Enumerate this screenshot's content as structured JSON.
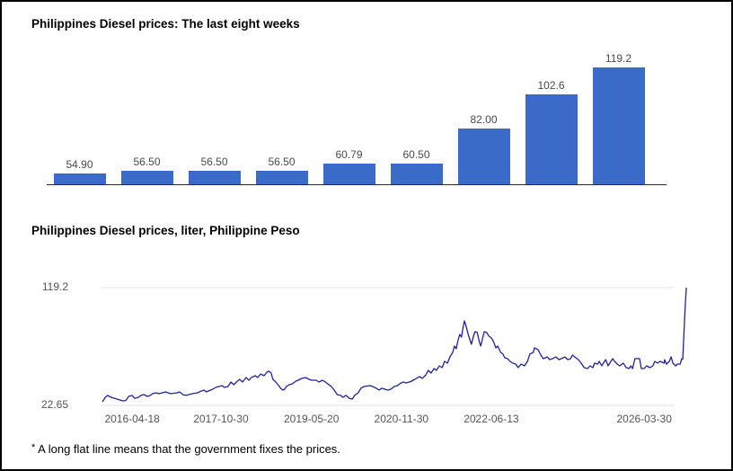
{
  "page": {
    "footnote_star": "*",
    "footnote_text": " A long flat line means that the government fixes the prices."
  },
  "chart_data": [
    {
      "type": "bar",
      "title": "Philippines Diesel prices: The last eight weeks",
      "categories": [
        "",
        "",
        "",
        "",
        "",
        "",
        "",
        "",
        ""
      ],
      "values": [
        54.9,
        56.5,
        56.5,
        56.5,
        60.79,
        60.5,
        82.0,
        102.6,
        119.2
      ],
      "data_labels": [
        "54.90",
        "56.50",
        "56.50",
        "56.50",
        "60.79",
        "60.50",
        "82.00",
        "102.6",
        "119.2"
      ],
      "bar_color": "#3a6bc8",
      "label_color": "#4a4a4a",
      "axis_color": "#2b2b2b",
      "ylim": [
        48.2,
        119.2
      ],
      "grid": false,
      "legend": "none"
    },
    {
      "type": "line",
      "title": "Philippines Diesel prices, liter, Philippine Peso",
      "ylabel": "",
      "xlabel": "",
      "ylim": [
        22.65,
        119.2
      ],
      "y_ticks": [
        {
          "label": "119.2",
          "value": 119.2
        },
        {
          "label": "22.65",
          "value": 22.65
        }
      ],
      "x_ticks": [
        {
          "label": "2016-04-18",
          "pos_pct": 5.1
        },
        {
          "label": "2017-10-30",
          "pos_pct": 20.3
        },
        {
          "label": "2019-05-20",
          "pos_pct": 35.8
        },
        {
          "label": "2020-11-30",
          "pos_pct": 51.2
        },
        {
          "label": "2022-06-13",
          "pos_pct": 66.6
        },
        {
          "label": "2026-03-30",
          "pos_pct": 92.8
        }
      ],
      "line_color": "#22229e",
      "grid_color": "#e0e0e0",
      "tick_color": "#555555",
      "legend": "none",
      "x_axis_note": "position percent along series (index-based axis)",
      "points": [
        [
          0,
          25.6
        ],
        [
          0.5,
          29.3
        ],
        [
          0.9,
          30.8
        ],
        [
          1.5,
          29.3
        ],
        [
          2.5,
          27.8
        ],
        [
          3.5,
          26.3
        ],
        [
          4,
          26.6
        ],
        [
          4.5,
          30
        ],
        [
          5.1,
          30.8
        ],
        [
          5.5,
          28.5
        ],
        [
          6.2,
          29.3
        ],
        [
          6.6,
          30.8
        ],
        [
          7.1,
          31.5
        ],
        [
          7.7,
          30
        ],
        [
          8.2,
          30.8
        ],
        [
          8.6,
          32.2
        ],
        [
          9.2,
          33
        ],
        [
          9.7,
          32.2
        ],
        [
          10.8,
          33.7
        ],
        [
          11.7,
          32.2
        ],
        [
          12.8,
          33
        ],
        [
          13.2,
          33.7
        ],
        [
          13.8,
          31.5
        ],
        [
          14.3,
          30.8
        ],
        [
          15.4,
          32.2
        ],
        [
          16.3,
          33
        ],
        [
          16.9,
          34.4
        ],
        [
          17.4,
          35.2
        ],
        [
          17.8,
          33.7
        ],
        [
          18.9,
          35.9
        ],
        [
          19.4,
          37.4
        ],
        [
          20.5,
          38.9
        ],
        [
          20.9,
          37.4
        ],
        [
          21.5,
          38.1
        ],
        [
          22,
          41.8
        ],
        [
          22.5,
          39.6
        ],
        [
          23.1,
          42.5
        ],
        [
          23.5,
          44
        ],
        [
          24,
          41.8
        ],
        [
          24.6,
          45.5
        ],
        [
          25.1,
          43.3
        ],
        [
          25.5,
          45.5
        ],
        [
          26.2,
          47
        ],
        [
          26.6,
          45.5
        ],
        [
          27.1,
          48.4
        ],
        [
          27.7,
          47
        ],
        [
          28.2,
          49.9
        ],
        [
          28.5,
          50.7
        ],
        [
          28.9,
          49.2
        ],
        [
          29.2,
          44
        ],
        [
          29.7,
          41.8
        ],
        [
          30.2,
          38.9
        ],
        [
          30.5,
          36.7
        ],
        [
          30.9,
          35.2
        ],
        [
          31.2,
          35.9
        ],
        [
          31.5,
          38.1
        ],
        [
          32,
          39.6
        ],
        [
          32.5,
          40.3
        ],
        [
          33.1,
          42.5
        ],
        [
          33.5,
          43.3
        ],
        [
          34.2,
          44.8
        ],
        [
          34.8,
          45.5
        ],
        [
          35.4,
          44
        ],
        [
          35.8,
          43.3
        ],
        [
          36.6,
          43.3
        ],
        [
          37.1,
          41.8
        ],
        [
          37.7,
          43.3
        ],
        [
          38.2,
          41.8
        ],
        [
          38.6,
          40.3
        ],
        [
          39.2,
          38.1
        ],
        [
          39.7,
          35.2
        ],
        [
          40.2,
          31.5
        ],
        [
          40.8,
          30.8
        ],
        [
          41.2,
          29.3
        ],
        [
          41.7,
          30.8
        ],
        [
          42.3,
          28.5
        ],
        [
          42.8,
          27.8
        ],
        [
          43.2,
          30.8
        ],
        [
          43.8,
          33
        ],
        [
          44.3,
          36.7
        ],
        [
          44.8,
          38.1
        ],
        [
          45.8,
          38.9
        ],
        [
          46.3,
          38.1
        ],
        [
          46.9,
          36.7
        ],
        [
          47.4,
          35.2
        ],
        [
          47.8,
          36.7
        ],
        [
          48.9,
          35.2
        ],
        [
          49.4,
          35.9
        ],
        [
          50,
          38.1
        ],
        [
          50.5,
          38.9
        ],
        [
          50.9,
          40.3
        ],
        [
          51.5,
          41.8
        ],
        [
          52,
          41.1
        ],
        [
          52.8,
          42.2
        ],
        [
          53.5,
          44
        ],
        [
          54.3,
          46.2
        ],
        [
          54.8,
          44.8
        ],
        [
          55.4,
          47.7
        ],
        [
          55.8,
          51.4
        ],
        [
          56.3,
          49.2
        ],
        [
          56.8,
          52.9
        ],
        [
          57.2,
          51.4
        ],
        [
          57.7,
          55.1
        ],
        [
          58.2,
          53.6
        ],
        [
          58.6,
          58.8
        ],
        [
          59.1,
          57.3
        ],
        [
          59.5,
          62.4
        ],
        [
          60,
          66.1
        ],
        [
          60.3,
          71.3
        ],
        [
          60.6,
          69.1
        ],
        [
          60.9,
          75.7
        ],
        [
          61.2,
          80.9
        ],
        [
          61.5,
          78.7
        ],
        [
          61.8,
          87.5
        ],
        [
          62,
          91.9
        ],
        [
          62.3,
          87.5
        ],
        [
          62.6,
          81.7
        ],
        [
          62.9,
          77.2
        ],
        [
          63.2,
          72.8
        ],
        [
          63.5,
          78.7
        ],
        [
          63.8,
          83.1
        ],
        [
          64.2,
          82.4
        ],
        [
          64.5,
          75.7
        ],
        [
          64.8,
          71.3
        ],
        [
          65.1,
          77.2
        ],
        [
          65.4,
          83.1
        ],
        [
          65.8,
          82.4
        ],
        [
          66.2,
          79.4
        ],
        [
          66.6,
          78
        ],
        [
          66.9,
          75.7
        ],
        [
          67.4,
          69.8
        ],
        [
          67.7,
          71.3
        ],
        [
          68.2,
          66.1
        ],
        [
          68.6,
          64.7
        ],
        [
          68.9,
          61.7
        ],
        [
          69.4,
          61
        ],
        [
          69.8,
          58.8
        ],
        [
          70.3,
          57.3
        ],
        [
          70.8,
          56.5
        ],
        [
          71.2,
          53.6
        ],
        [
          71.7,
          56.5
        ],
        [
          72.3,
          55.1
        ],
        [
          72.8,
          58.8
        ],
        [
          73.2,
          64.7
        ],
        [
          73.8,
          66.1
        ],
        [
          74,
          69.8
        ],
        [
          74.6,
          68.4
        ],
        [
          75.1,
          63.9
        ],
        [
          75.5,
          61
        ],
        [
          76.2,
          62.4
        ],
        [
          76.6,
          60.2
        ],
        [
          77.1,
          61
        ],
        [
          77.7,
          62.4
        ],
        [
          78.2,
          60.2
        ],
        [
          78.6,
          61
        ],
        [
          79.2,
          62.4
        ],
        [
          79.7,
          60.2
        ],
        [
          80.2,
          61
        ],
        [
          80.5,
          63.9
        ],
        [
          80.9,
          62.4
        ],
        [
          81.5,
          60.2
        ],
        [
          82,
          57.3
        ],
        [
          82.5,
          53.6
        ],
        [
          83.1,
          52.9
        ],
        [
          83.5,
          55.1
        ],
        [
          84,
          53.6
        ],
        [
          84.3,
          57.3
        ],
        [
          84.8,
          56.5
        ],
        [
          85.1,
          58.8
        ],
        [
          85.5,
          55.1
        ],
        [
          85.8,
          57.3
        ],
        [
          86.2,
          60.2
        ],
        [
          86.6,
          55.1
        ],
        [
          87.1,
          58.8
        ],
        [
          87.4,
          61
        ],
        [
          87.7,
          58.8
        ],
        [
          88.2,
          56.5
        ],
        [
          88.6,
          55.1
        ],
        [
          89.2,
          57.3
        ],
        [
          89.7,
          53.6
        ],
        [
          90.2,
          52.9
        ],
        [
          90.5,
          55.1
        ],
        [
          90.8,
          52.9
        ],
        [
          91.2,
          61
        ],
        [
          92,
          61
        ],
        [
          92.3,
          52.9
        ],
        [
          92.8,
          52.9
        ],
        [
          93.2,
          55.1
        ],
        [
          93.8,
          53.6
        ],
        [
          94.3,
          55.1
        ],
        [
          94.6,
          58.8
        ],
        [
          95.1,
          57.3
        ],
        [
          95.5,
          58.8
        ],
        [
          96.2,
          57.3
        ],
        [
          96.3,
          60.2
        ],
        [
          96.6,
          56.5
        ],
        [
          97.1,
          58.8
        ],
        [
          97.4,
          62.4
        ],
        [
          97.7,
          57.3
        ],
        [
          98.2,
          54.9
        ],
        [
          98.45,
          56.5
        ],
        [
          98.7,
          56.5
        ],
        [
          98.95,
          56.5
        ],
        [
          99.2,
          60.79
        ],
        [
          99.4,
          60.5
        ],
        [
          99.6,
          82
        ],
        [
          99.8,
          102.6
        ],
        [
          100,
          119.2
        ]
      ]
    }
  ]
}
